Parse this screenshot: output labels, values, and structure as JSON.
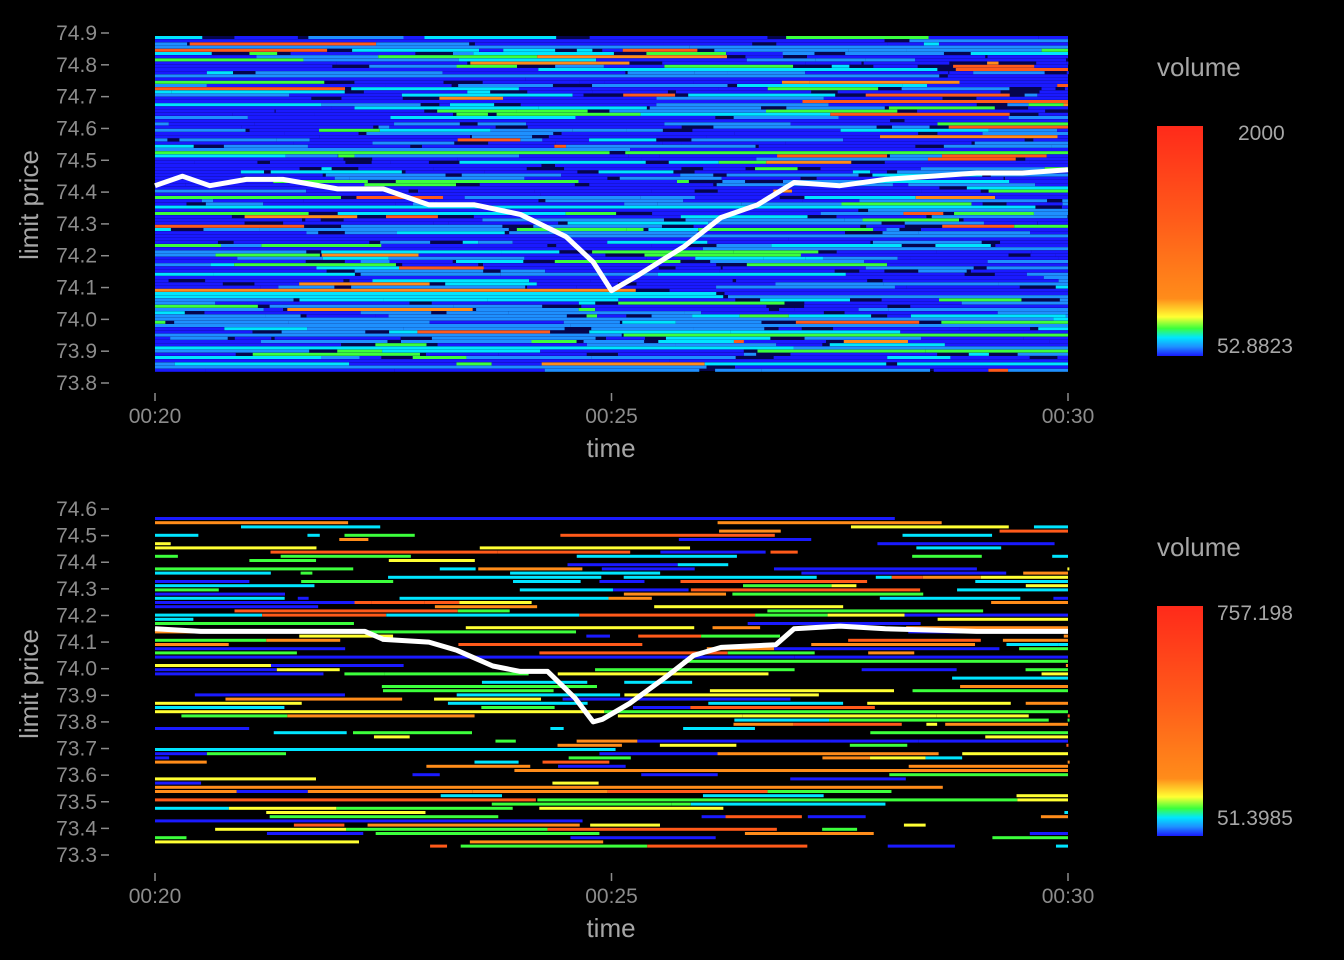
{
  "chart_data": [
    {
      "type": "heatmap",
      "xlabel": "time",
      "ylabel": "limit price",
      "x_ticks": [
        "00:20",
        "00:25",
        "00:30"
      ],
      "x_range_minutes": [
        20,
        30
      ],
      "y_ticks": [
        "73.8",
        "73.9",
        "74.0",
        "74.1",
        "74.2",
        "74.3",
        "74.4",
        "74.5",
        "74.6",
        "74.7",
        "74.8",
        "74.9"
      ],
      "ylim": [
        73.8,
        74.9
      ],
      "grid": false,
      "legend": {
        "title": "volume",
        "max_label": "2000",
        "min_label": "52.8823",
        "placement": "right"
      },
      "colors": [
        "#1a1aff",
        "#1e90ff",
        "#00e5ff",
        "#3cff3c",
        "#ffff33",
        "#ff8c1a",
        "#ff5a1a",
        "#ff2a1a"
      ],
      "background": "#05054d",
      "midprice": {
        "x": [
          20.0,
          20.3,
          20.6,
          21.0,
          21.4,
          22.0,
          22.5,
          23.0,
          23.5,
          24.0,
          24.5,
          24.8,
          25.0,
          25.3,
          25.8,
          26.2,
          26.6,
          27.0,
          27.5,
          28.0,
          28.5,
          29.0,
          29.5,
          30.0
        ],
        "y": [
          74.42,
          74.45,
          74.42,
          74.44,
          74.44,
          74.41,
          74.41,
          74.36,
          74.36,
          74.33,
          74.26,
          74.18,
          74.09,
          74.14,
          74.23,
          74.32,
          74.36,
          74.43,
          74.42,
          74.44,
          74.45,
          74.46,
          74.46,
          74.47
        ]
      }
    },
    {
      "type": "heatmap",
      "xlabel": "time",
      "ylabel": "limit price",
      "x_ticks": [
        "00:20",
        "00:25",
        "00:30"
      ],
      "x_range_minutes": [
        20,
        30
      ],
      "y_ticks": [
        "73.3",
        "73.4",
        "73.5",
        "73.6",
        "73.7",
        "73.8",
        "73.9",
        "74.0",
        "74.1",
        "74.2",
        "74.3",
        "74.4",
        "74.5",
        "74.6"
      ],
      "ylim": [
        73.3,
        74.6
      ],
      "grid": false,
      "legend": {
        "title": "volume",
        "max_label": "757.198",
        "min_label": "51.3985",
        "placement": "right"
      },
      "colors": [
        "#1a1aff",
        "#1e90ff",
        "#00e5ff",
        "#3cff3c",
        "#ffff33",
        "#ff8c1a",
        "#ff5a1a",
        "#ff2a1a"
      ],
      "background": "#000000",
      "midprice": {
        "x": [
          20.0,
          20.5,
          21.0,
          21.5,
          22.0,
          22.3,
          22.5,
          23.0,
          23.3,
          23.7,
          24.0,
          24.3,
          24.6,
          24.8,
          24.9,
          25.2,
          25.6,
          25.9,
          26.2,
          26.8,
          27.0,
          27.5,
          28.0,
          29.0,
          30.0
        ],
        "y": [
          74.15,
          74.14,
          74.14,
          74.14,
          74.14,
          74.14,
          74.11,
          74.1,
          74.07,
          74.01,
          73.99,
          73.99,
          73.89,
          73.8,
          73.81,
          73.87,
          73.97,
          74.05,
          74.08,
          74.09,
          74.15,
          74.16,
          74.15,
          74.14,
          74.14
        ]
      }
    }
  ]
}
